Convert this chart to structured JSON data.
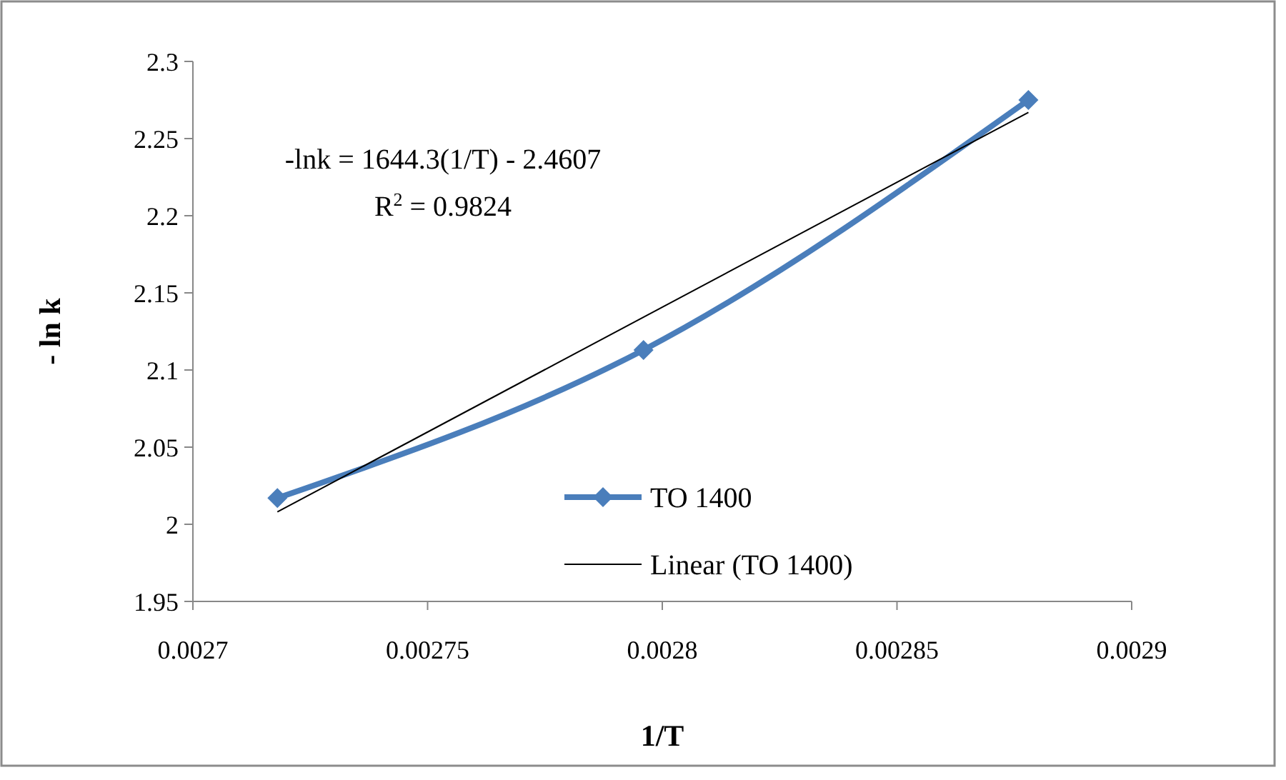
{
  "chart_data": {
    "type": "line",
    "xlabel": "1/T",
    "ylabel": "- ln k",
    "xlim": [
      0.0027,
      0.0029
    ],
    "xticks": [
      0.0027,
      0.00275,
      0.0028,
      0.00285,
      0.0029
    ],
    "ylim": [
      1.95,
      2.3
    ],
    "yticks": [
      1.95,
      2,
      2.05,
      2.1,
      2.15,
      2.2,
      2.25,
      2.3
    ],
    "grid": false,
    "legend": "bottom right",
    "series": [
      {
        "name": "TO 1400",
        "color": "#4a7ebb",
        "x": [
          0.002718,
          0.002796,
          0.002878
        ],
        "values": [
          2.017,
          2.113,
          2.275
        ],
        "marker": "diamond"
      },
      {
        "name": "Linear (TO 1400)",
        "type": "line",
        "color": "#000000",
        "x": [
          0.002718,
          0.002878
        ],
        "values": [
          2.008,
          2.267
        ],
        "marker": "none"
      }
    ],
    "annotations": [
      "-lnk = 1644.3(1/T) - 2.4607",
      "R$^{2}$ = 0.9824"
    ]
  }
}
